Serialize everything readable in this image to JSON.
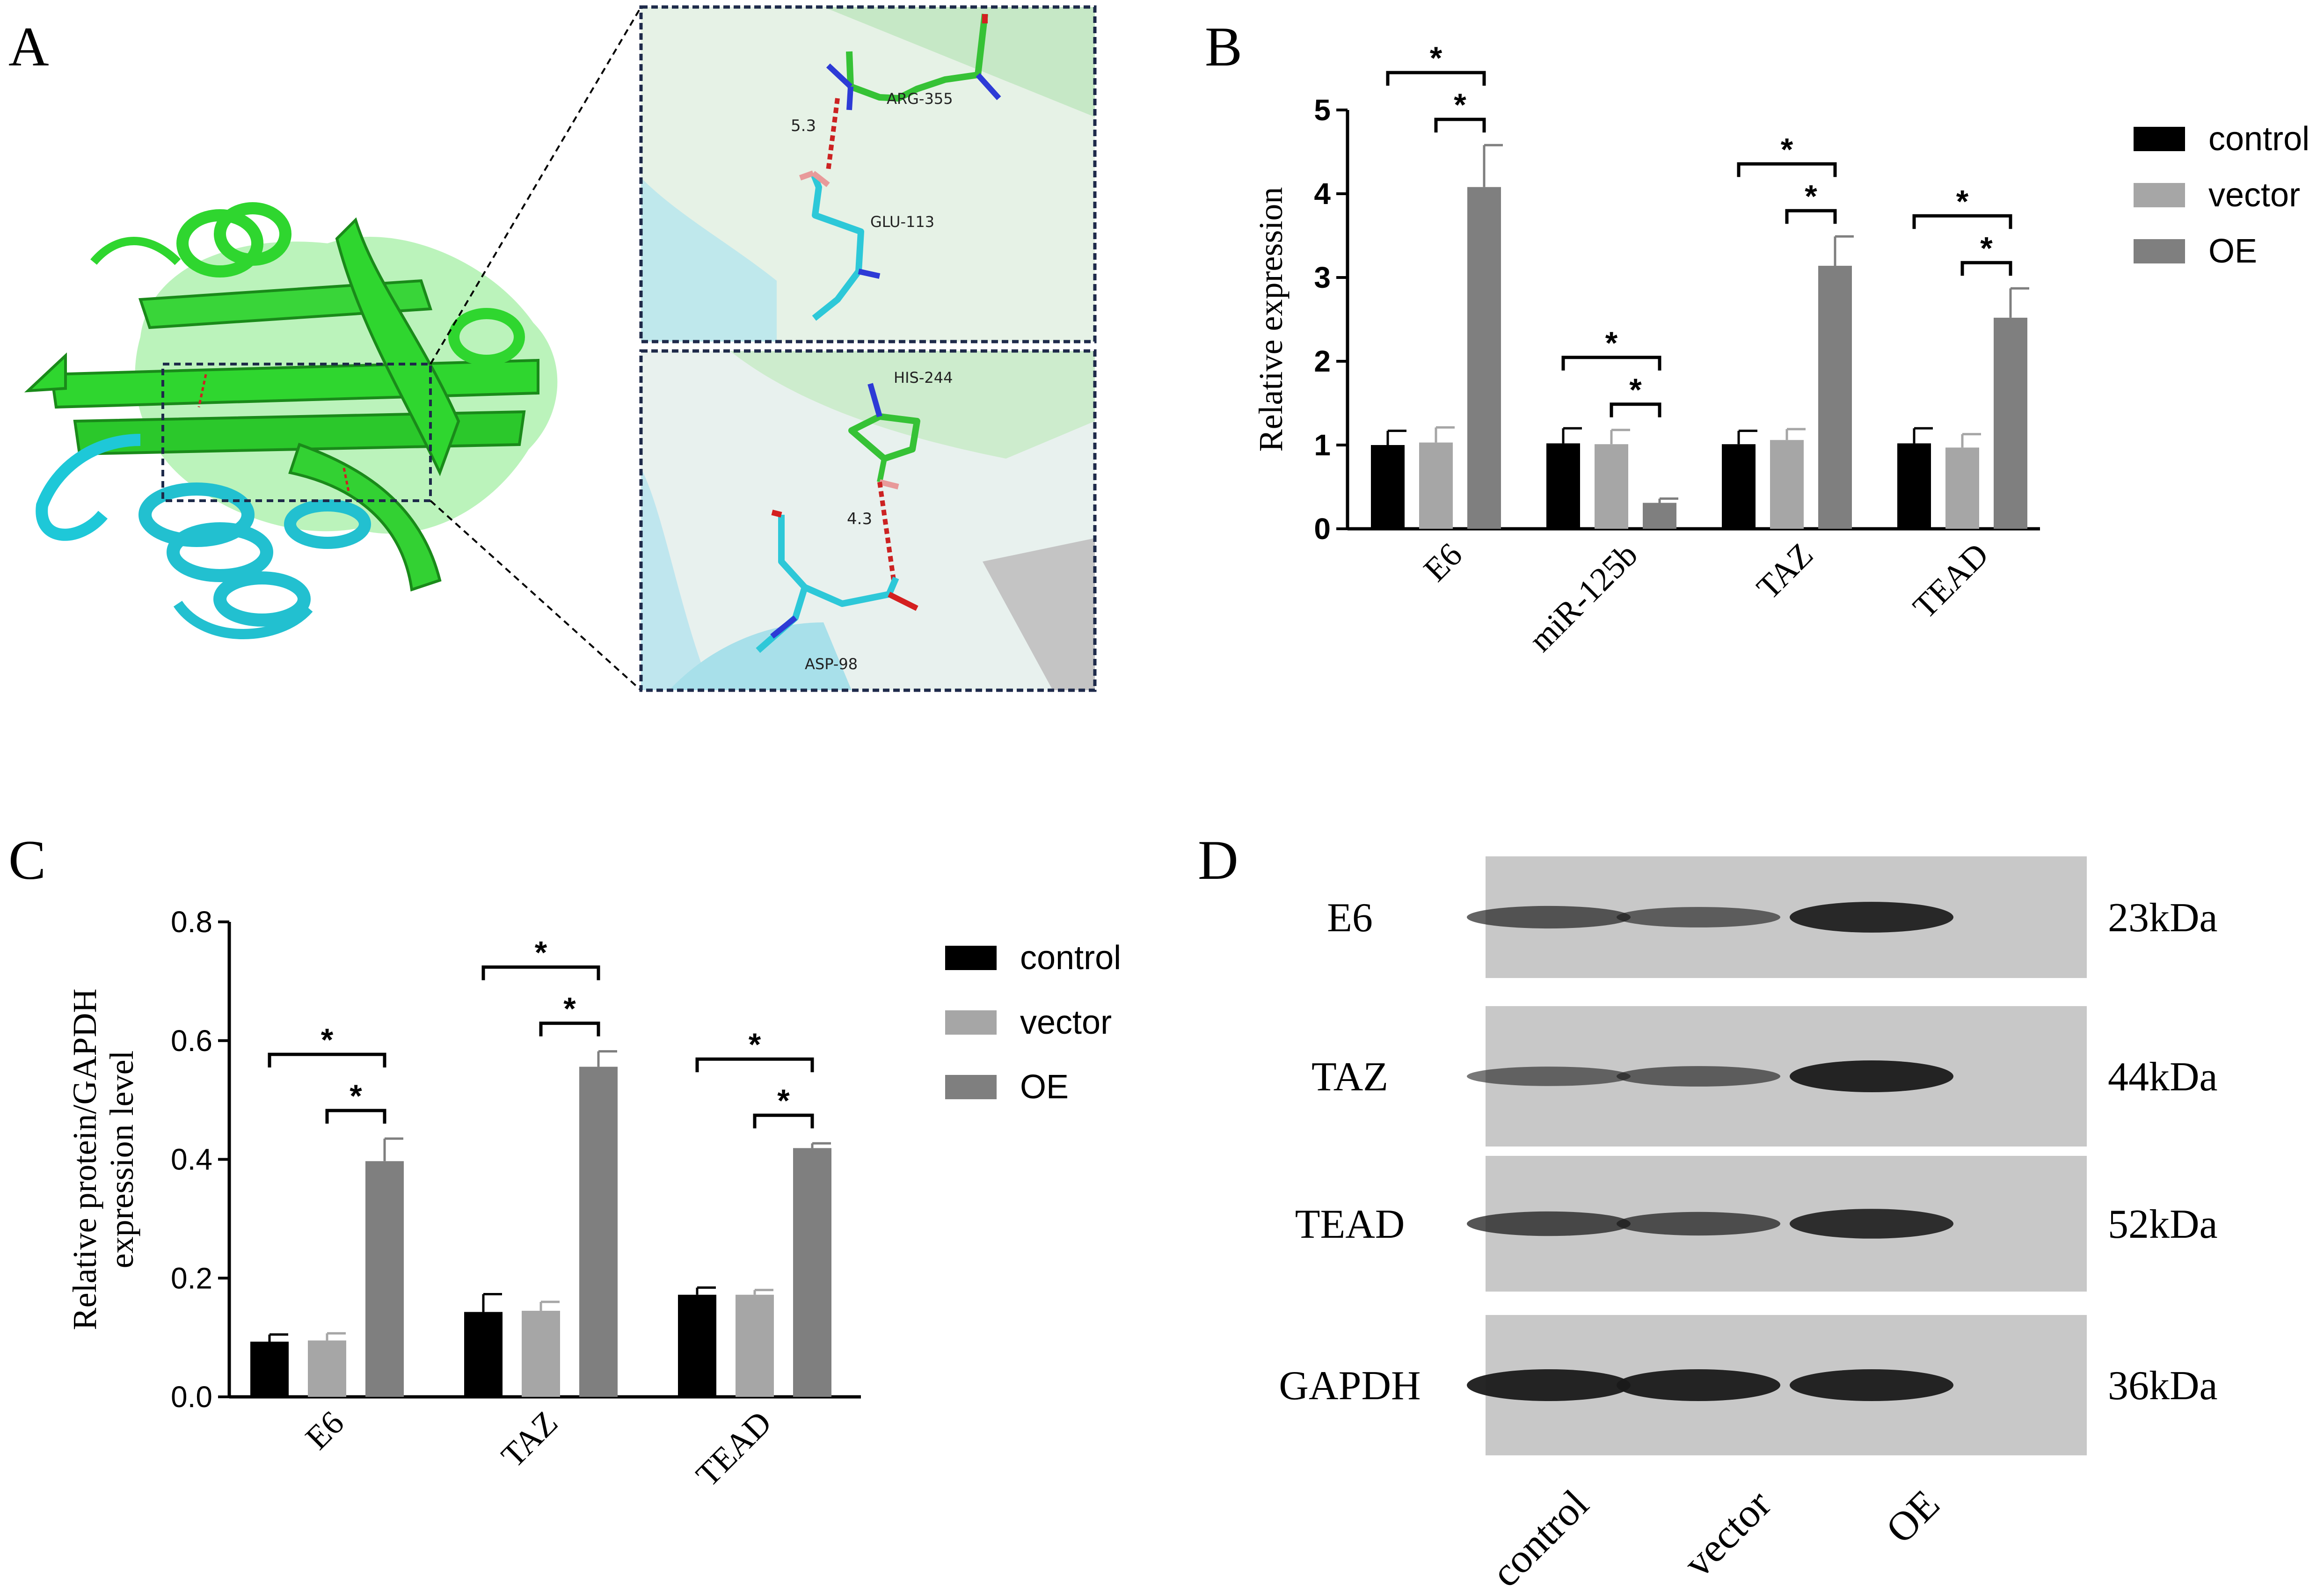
{
  "panels": {
    "a": "A",
    "b": "B",
    "c": "C",
    "d": "D"
  },
  "panel_a": {
    "upper_labels": {
      "res1": "ARG-355",
      "res2": "GLU-113",
      "dist": "5.3"
    },
    "lower_labels": {
      "res1": "HIS-244",
      "res2": "ASP-98",
      "dist": "4.3"
    },
    "colors": {
      "green_chain": "#33cc33",
      "cyan_chain": "#22c0d0",
      "bond": "#cc2222"
    }
  },
  "legend": {
    "items": [
      {
        "label": "control",
        "color": "#000000"
      },
      {
        "label": "vector",
        "color": "#a6a6a6"
      },
      {
        "label": "OE",
        "color": "#7f7f7f"
      }
    ]
  },
  "chart_data": [
    {
      "type": "bar",
      "ylabel": "Relative expression",
      "ylim": [
        0,
        5
      ],
      "yticks": [
        "0",
        "1",
        "2",
        "3",
        "4",
        "5"
      ],
      "categories": [
        "E6",
        "miR-125b",
        "TAZ",
        "TEAD"
      ],
      "series": [
        {
          "name": "control",
          "values": [
            1.0,
            1.02,
            1.01,
            1.02
          ],
          "errors": [
            0.17,
            0.18,
            0.16,
            0.18
          ]
        },
        {
          "name": "vector",
          "values": [
            1.03,
            1.01,
            1.06,
            0.97
          ],
          "errors": [
            0.18,
            0.17,
            0.13,
            0.16
          ]
        },
        {
          "name": "OE",
          "values": [
            4.08,
            0.31,
            3.14,
            2.52
          ],
          "errors": [
            0.5,
            0.05,
            0.35,
            0.35
          ]
        }
      ],
      "significance": "*"
    },
    {
      "type": "bar",
      "ylabel_lines": [
        "Relative protein/GAPDH",
        "expression level"
      ],
      "ylim": [
        0,
        0.8
      ],
      "yticks": [
        "0.0",
        "0.2",
        "0.4",
        "0.6",
        "0.8"
      ],
      "categories": [
        "E6",
        "TAZ",
        "TEAD"
      ],
      "series": [
        {
          "name": "control",
          "values": [
            0.093,
            0.143,
            0.172
          ],
          "errors": [
            0.012,
            0.03,
            0.012
          ]
        },
        {
          "name": "vector",
          "values": [
            0.095,
            0.145,
            0.172
          ],
          "errors": [
            0.012,
            0.015,
            0.008
          ]
        },
        {
          "name": "OE",
          "values": [
            0.397,
            0.556,
            0.419
          ],
          "errors": [
            0.038,
            0.026,
            0.008
          ]
        }
      ],
      "significance": "*"
    }
  ],
  "blot": {
    "rows": [
      {
        "protein": "E6",
        "size": "23kDa"
      },
      {
        "protein": "TAZ",
        "size": "44kDa"
      },
      {
        "protein": "TEAD",
        "size": "52kDa"
      },
      {
        "protein": "GAPDH",
        "size": "36kDa"
      }
    ],
    "lanes": [
      "control",
      "vector",
      "OE"
    ]
  }
}
